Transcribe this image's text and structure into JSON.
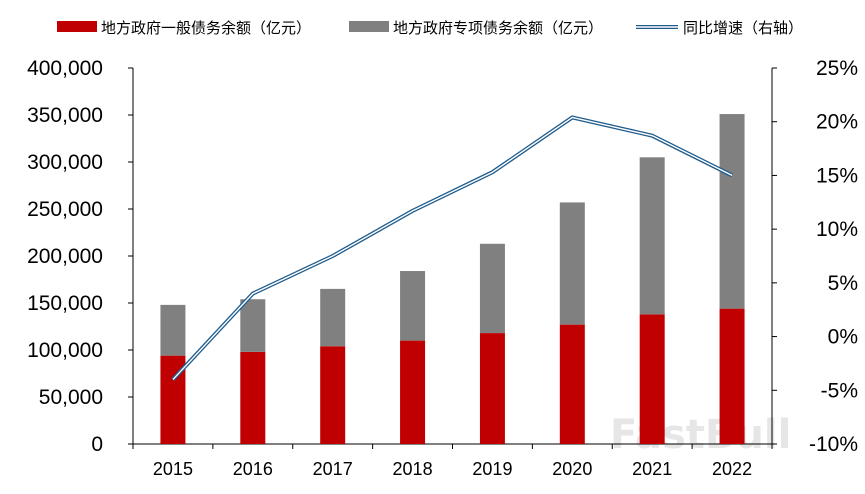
{
  "chart_data": {
    "type": "bar",
    "categories": [
      "2015",
      "2016",
      "2017",
      "2018",
      "2019",
      "2020",
      "2021",
      "2022"
    ],
    "series": [
      {
        "name": "地方政府一般债务余额（亿元）",
        "type": "bar",
        "axis": "left",
        "stack": true,
        "color": "#C00000",
        "values": [
          94000,
          98000,
          104000,
          110000,
          118000,
          127000,
          138000,
          144000
        ]
      },
      {
        "name": "地方政府专项债务余额（亿元）",
        "type": "bar",
        "axis": "left",
        "stack": true,
        "color": "#808080",
        "values": [
          54000,
          56000,
          61000,
          74000,
          95000,
          130000,
          167000,
          207000
        ]
      },
      {
        "name": "同比增速（右轴）",
        "type": "line",
        "axis": "right",
        "color": "#1F5C8C",
        "values": [
          -4.0,
          4.0,
          7.5,
          11.7,
          15.3,
          20.4,
          18.7,
          15.0
        ]
      }
    ],
    "y_left": {
      "ylim": [
        0,
        400000
      ],
      "ticks": [
        0,
        50000,
        100000,
        150000,
        200000,
        250000,
        300000,
        350000,
        400000
      ],
      "tick_labels": [
        "0",
        "50,000",
        "100,000",
        "150,000",
        "200,000",
        "250,000",
        "300,000",
        "350,000",
        "400,000"
      ]
    },
    "y_right": {
      "ylim": [
        -10,
        25
      ],
      "ticks": [
        -10,
        -5,
        0,
        5,
        10,
        15,
        20,
        25
      ],
      "tick_labels": [
        "-10%",
        "-5%",
        "0%",
        "5%",
        "10%",
        "15%",
        "20%",
        "25%"
      ]
    },
    "grid": false,
    "legend": "top",
    "watermark": "FastBull"
  }
}
